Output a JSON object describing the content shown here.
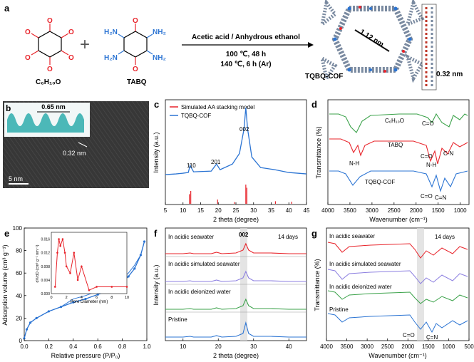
{
  "colors": {
    "red": "#e8232a",
    "blue": "#2b74d3",
    "green": "#3ba24a",
    "violet": "#8c7fe0",
    "gray": "#b0b0b0"
  },
  "panel_a": {
    "letter": "a",
    "reactant1_label": "C₆H₁₀O",
    "reactant2_label": "TABQ",
    "plus": "+",
    "cond_solvent": "Acetic acid / Anhydrous ethanol",
    "cond_step1": "100 ℃, 48 h",
    "cond_step2": "140 ℃, 6 h (Ar)",
    "product_label": "TQBQ-COF",
    "pore_size": "1.12 nm",
    "interlayer": "0.32 nm",
    "atom_O": "O",
    "atom_H2N": "H₂N",
    "atom_NH2": "NH₂"
  },
  "panel_b": {
    "letter": "b",
    "inset_spacing": "0.65 nm",
    "spacing": "0.32 nm",
    "scalebar": "5 nm"
  },
  "chart_data": [
    {
      "panel": "c",
      "type": "line",
      "letter": "c",
      "xlabel": "2 theta (degree)",
      "ylabel": "Intensity (a.u.)",
      "xlim": [
        5,
        45
      ],
      "xticks": [
        5,
        10,
        15,
        20,
        25,
        30,
        35,
        40,
        45
      ],
      "series": [
        {
          "name": "Simulated AA stacking model",
          "color": "#e8232a",
          "style": "sticks",
          "x": [
            11.8,
            12.2,
            19.8,
            24.6,
            27.8,
            28.1,
            36.2,
            40.8
          ],
          "y": [
            0.45,
            0.6,
            0.2,
            0.08,
            0.9,
            0.75,
            0.12,
            0.1
          ]
        },
        {
          "name": "TQBQ-COF",
          "color": "#2b74d3",
          "x": [
            5,
            8,
            10,
            11.5,
            12,
            13,
            18,
            19.5,
            20.5,
            24,
            26,
            27.3,
            27.8,
            28.3,
            29.5,
            32,
            36,
            40,
            45
          ],
          "y": [
            0.05,
            0.06,
            0.07,
            0.08,
            0.18,
            0.09,
            0.1,
            0.2,
            0.12,
            0.2,
            0.35,
            0.7,
            1.0,
            0.7,
            0.3,
            0.15,
            0.12,
            0.08,
            0.06
          ]
        }
      ],
      "peak_labels": [
        "110",
        "201",
        "002"
      ]
    },
    {
      "panel": "d",
      "type": "line",
      "letter": "d",
      "xlabel": "Wavenumber (cm⁻¹)",
      "ylabel": "Transmittance (%)",
      "xlim": [
        4000,
        800
      ],
      "xticks": [
        4000,
        3500,
        3000,
        2500,
        2000,
        1500,
        1000
      ],
      "series": [
        {
          "name": "C₆H₁₀O",
          "color": "#3ba24a"
        },
        {
          "name": "TABQ",
          "color": "#e8232a"
        },
        {
          "name": "TQBQ-COF",
          "color": "#2b74d3"
        }
      ],
      "annotations": [
        "C=O",
        "C=O",
        "C-N",
        "N-H",
        "N-H",
        "C=O",
        "C=N"
      ]
    },
    {
      "panel": "e",
      "type": "line",
      "letter": "e",
      "xlabel": "Relative pressure (P/P₀)",
      "ylabel": "Adsorption volume (cm³ g⁻¹)",
      "xlim": [
        0,
        1.0
      ],
      "ylim": [
        0,
        100
      ],
      "xticks": [
        0.0,
        0.2,
        0.4,
        0.6,
        0.8,
        1.0
      ],
      "yticks": [
        0,
        20,
        40,
        60,
        80,
        100
      ],
      "series": [
        {
          "name": "isotherm",
          "color": "#2b74d3",
          "x": [
            0.0,
            0.02,
            0.05,
            0.1,
            0.2,
            0.3,
            0.4,
            0.5,
            0.6,
            0.7,
            0.8,
            0.85,
            0.9,
            0.95,
            0.98
          ],
          "y": [
            2,
            10,
            16,
            20,
            26,
            30,
            34,
            37,
            41,
            45,
            52,
            57,
            64,
            76,
            88
          ]
        }
      ],
      "inset": {
        "xlabel": "Pore Diameter (nm)",
        "ylabel": "dV/dD (cm³ g⁻¹ nm⁻¹)",
        "xticks": [
          0,
          2,
          4,
          6,
          8,
          10
        ],
        "yticks": [
          "0.000",
          "0.004",
          "0.008",
          "0.012",
          "0.016"
        ],
        "x": [
          0.5,
          0.8,
          1.0,
          1.2,
          1.5,
          1.8,
          2.0,
          2.5,
          3,
          3.5,
          4,
          5,
          6,
          8,
          10
        ],
        "y": [
          0.002,
          0.012,
          0.016,
          0.014,
          0.016,
          0.012,
          0.008,
          0.006,
          0.012,
          0.004,
          0.008,
          0.001,
          0.002,
          0.002,
          0.002
        ]
      }
    },
    {
      "panel": "f",
      "type": "line",
      "letter": "f",
      "xlabel": "2 theta (degree)",
      "ylabel": "Intensity (a.u.)",
      "xlim": [
        5,
        45
      ],
      "xticks": [
        10,
        20,
        30,
        40
      ],
      "peak_label": "002",
      "days_label": "14 days",
      "series": [
        {
          "name": "In acidic seawater",
          "color": "#e8232a"
        },
        {
          "name": "In acidic simulated seawater",
          "color": "#8c7fe0"
        },
        {
          "name": "In acidic deionized water",
          "color": "#3ba24a"
        },
        {
          "name": "Pristine",
          "color": "#2b74d3"
        }
      ]
    },
    {
      "panel": "g",
      "type": "line",
      "letter": "g",
      "xlabel": "Wavenumber (cm⁻¹)",
      "ylabel": "Transmittance (%)",
      "xlim": [
        4000,
        500
      ],
      "xticks": [
        4000,
        3500,
        3000,
        2500,
        2000,
        1500,
        1000,
        500
      ],
      "days_label": "14 days",
      "annotations": [
        "C=O",
        "C=N"
      ],
      "series": [
        {
          "name": "In acidic seawater",
          "color": "#e8232a"
        },
        {
          "name": "In acidic simulated seawater",
          "color": "#8c7fe0"
        },
        {
          "name": "In acidic deionized water",
          "color": "#3ba24a"
        },
        {
          "name": "Pristine",
          "color": "#2b74d3"
        }
      ]
    }
  ]
}
